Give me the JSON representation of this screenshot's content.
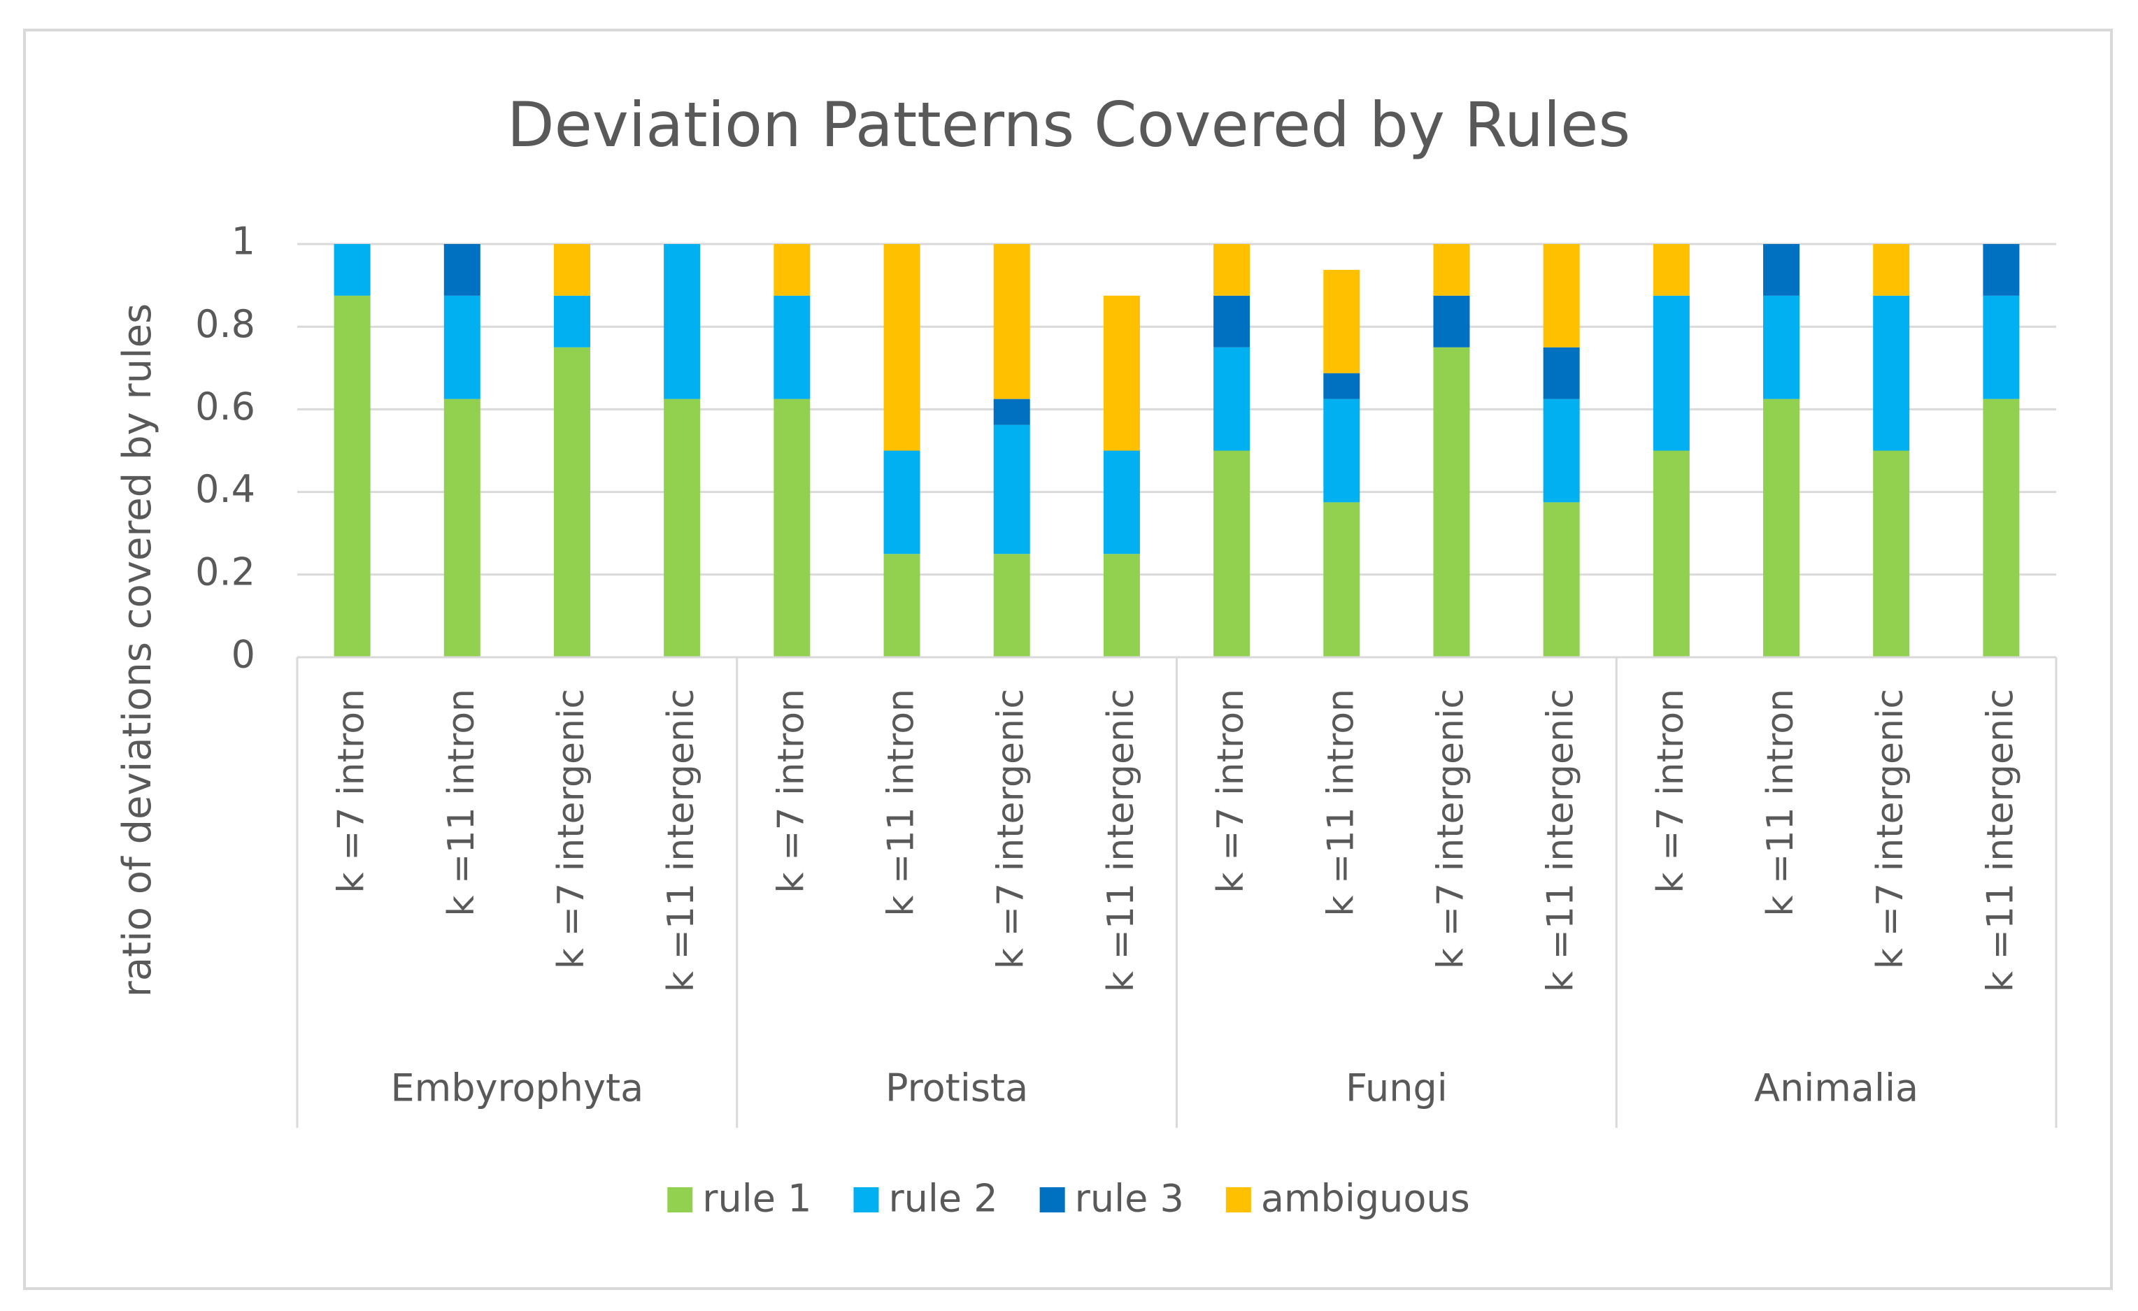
{
  "chart_data": {
    "type": "stacked_bar",
    "title": "Deviation Patterns Covered by Rules",
    "y_label": "ratio of deviations covered by rules",
    "categories": [
      "k =7 intron",
      "k =11 intron",
      "k =7 intergenic",
      "k =11 intergenic",
      "k =7 intron",
      "k =11 intron",
      "k =7 intergenic",
      "k =11 intergenic",
      "k =7 intron",
      "k =11 intron",
      "k =7 intergenic",
      "k =11 intergenic",
      "k =7 intron",
      "k =11 intron",
      "k =7 intergenic",
      "k =11 intergenic"
    ],
    "groups": [
      "Embyrophyta",
      "Protista",
      "Fungi",
      "Animalia"
    ],
    "series": [
      {
        "name": "rule 1",
        "color": "#92d050",
        "values": [
          0.875,
          0.625,
          0.75,
          0.625,
          0.625,
          0.25,
          0.25,
          0.25,
          0.5,
          0.375,
          0.75,
          0.375,
          0.5,
          0.625,
          0.5,
          0.625
        ]
      },
      {
        "name": "rule 2",
        "color": "#00b0f0",
        "values": [
          0.125,
          0.25,
          0.125,
          0.375,
          0.25,
          0.25,
          0.3125,
          0.25,
          0.25,
          0.25,
          0,
          0.25,
          0.375,
          0.25,
          0.375,
          0.25
        ]
      },
      {
        "name": "rule 3",
        "color": "#0070c0",
        "values": [
          0,
          0.125,
          0,
          0,
          0,
          0,
          0.0625,
          0,
          0.125,
          0.0625,
          0.125,
          0.125,
          0,
          0.125,
          0,
          0.125
        ]
      },
      {
        "name": "ambiguous",
        "color": "#ffc000",
        "values": [
          0,
          0,
          0.125,
          0,
          0.125,
          0.5,
          0.375,
          0.375,
          0.125,
          0.25,
          0.125,
          0.25,
          0.125,
          0,
          0.125,
          0
        ]
      }
    ],
    "ylim": [
      0,
      1
    ],
    "yticks": [
      0,
      0.2,
      0.4,
      0.6,
      0.8,
      1
    ],
    "grid": true,
    "legend": "bottom"
  }
}
